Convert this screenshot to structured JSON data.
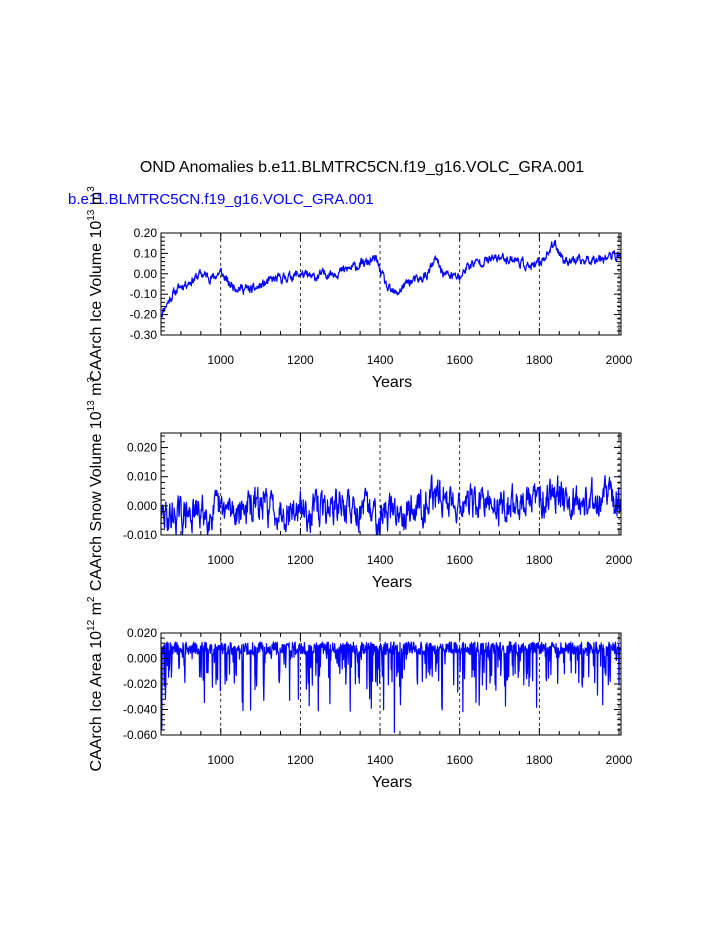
{
  "title": "OND Anomalies b.e11.BLMTRC5CN.f19_g16.VOLC_GRA.001",
  "subtitle": "b.e11.BLMTRC5CN.f19_g16.VOLC_GRA.001",
  "line_color": "#0000ff",
  "subtitle_color": "#0000ff",
  "chart_data": [
    {
      "type": "line",
      "title": "",
      "ylabel": "CAArch Ice Volume",
      "yunits": "10 13 m3",
      "xlabel": "Years",
      "xlim": [
        850,
        2005
      ],
      "ylim": [
        -0.3,
        0.2
      ],
      "xticks": [
        1000,
        1200,
        1400,
        1600,
        1800,
        2000
      ],
      "yticks": [
        -0.3,
        -0.2,
        -0.1,
        0.0,
        0.1,
        0.2
      ],
      "ytick_labels": [
        "-0.30",
        "-0.20",
        "-0.10",
        "0.00",
        "0.10",
        "0.20"
      ],
      "grid": "vertical-dashed",
      "x_anchor": [
        850,
        860,
        880,
        900,
        930,
        950,
        980,
        1000,
        1020,
        1050,
        1080,
        1100,
        1130,
        1160,
        1200,
        1230,
        1260,
        1300,
        1330,
        1360,
        1390,
        1400,
        1420,
        1440,
        1470,
        1500,
        1520,
        1540,
        1560,
        1600,
        1620,
        1650,
        1680,
        1700,
        1740,
        1760,
        1780,
        1800,
        1820,
        1840,
        1860,
        1900,
        1950,
        2000,
        2005
      ],
      "y_anchor": [
        -0.2,
        -0.16,
        -0.1,
        -0.06,
        -0.03,
        0.0,
        -0.02,
        0.01,
        -0.05,
        -0.07,
        -0.08,
        -0.06,
        -0.03,
        -0.02,
        0.0,
        -0.02,
        0.0,
        0.01,
        0.03,
        0.05,
        0.07,
        0.02,
        -0.08,
        -0.1,
        -0.04,
        -0.03,
        0.0,
        0.07,
        0.0,
        -0.02,
        0.04,
        0.06,
        0.07,
        0.08,
        0.07,
        0.05,
        0.03,
        0.05,
        0.1,
        0.15,
        0.07,
        0.06,
        0.08,
        0.09,
        0.08
      ],
      "noise": 0.018,
      "seed": 11
    },
    {
      "type": "line",
      "title": "",
      "ylabel": "CAArch Snow Volume",
      "yunits": "10 13 m3",
      "xlabel": "Years",
      "xlim": [
        850,
        2005
      ],
      "ylim": [
        -0.01,
        0.025
      ],
      "xticks": [
        1000,
        1200,
        1400,
        1600,
        1800,
        2000
      ],
      "yticks": [
        -0.01,
        0.0,
        0.01,
        0.02
      ],
      "ytick_labels": [
        "-0.010",
        "0.000",
        "0.010",
        "0.020"
      ],
      "grid": "vertical-dashed",
      "x_anchor": [
        850,
        1000,
        1100,
        1200,
        1300,
        1400,
        1500,
        1530,
        1600,
        1700,
        1800,
        1840,
        1900,
        1970,
        2005
      ],
      "y_anchor": [
        -0.004,
        -0.002,
        0.0,
        -0.002,
        0.0,
        -0.003,
        0.0,
        0.004,
        0.001,
        0.0,
        0.002,
        0.006,
        0.001,
        0.004,
        -0.001
      ],
      "noise": 0.0045,
      "seed": 29
    },
    {
      "type": "line",
      "title": "",
      "ylabel": "CAArch Ice Area",
      "yunits": "10 12 m2",
      "xlabel": "Years",
      "xlim": [
        850,
        2005
      ],
      "ylim": [
        -0.06,
        0.02
      ],
      "xticks": [
        1000,
        1200,
        1400,
        1600,
        1800,
        2000
      ],
      "yticks": [
        -0.06,
        -0.04,
        -0.02,
        0.0,
        0.02
      ],
      "ytick_labels": [
        "-0.060",
        "-0.040",
        "-0.020",
        "0.000",
        "0.020"
      ],
      "grid": "vertical-dashed",
      "baseline": 0.008,
      "spike_min": -0.058,
      "seed": 47
    }
  ]
}
